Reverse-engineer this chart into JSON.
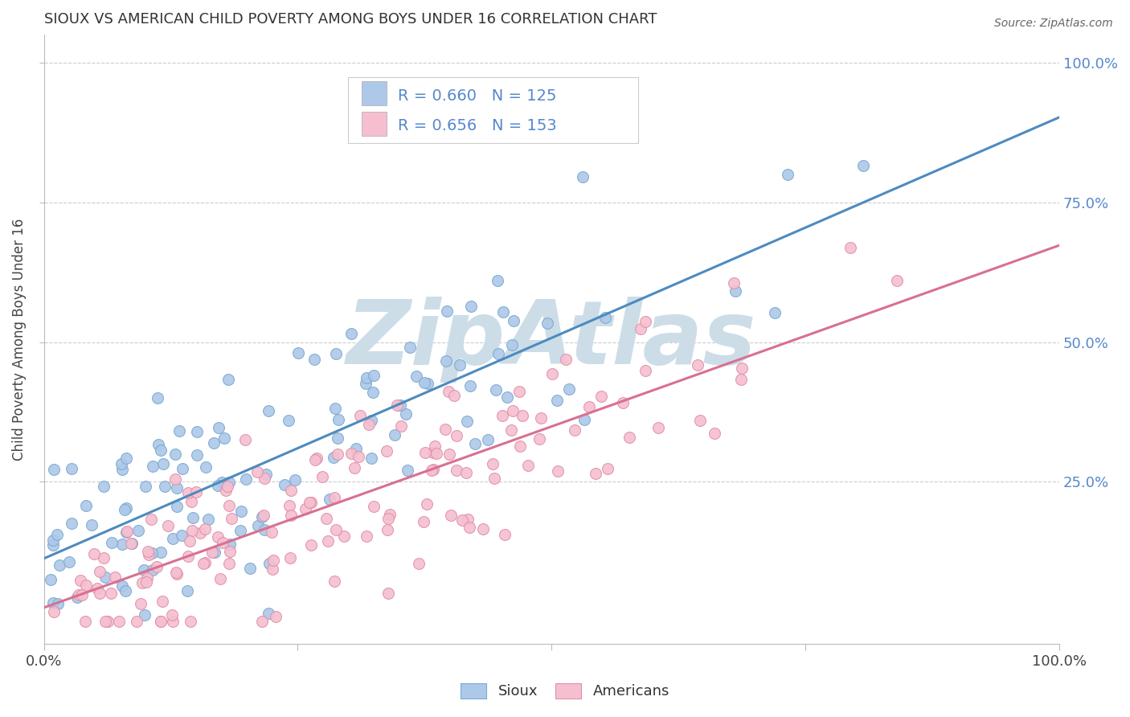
{
  "title": "SIOUX VS AMERICAN CHILD POVERTY AMONG BOYS UNDER 16 CORRELATION CHART",
  "source": "Source: ZipAtlas.com",
  "ylabel": "Child Poverty Among Boys Under 16",
  "sioux_R": 0.66,
  "sioux_N": 125,
  "american_R": 0.656,
  "american_N": 153,
  "sioux_color": "#adc8e8",
  "sioux_edge_color": "#7aaad0",
  "sioux_line_color": "#4d8bbf",
  "american_color": "#f5bfcf",
  "american_edge_color": "#e090aa",
  "american_line_color": "#d97090",
  "watermark_text": "ZipAtlas",
  "watermark_color": "#ccdde8",
  "right_tick_color": "#5588cc",
  "background_color": "#ffffff",
  "sioux_slope_true": 0.8,
  "sioux_intercept_true": 0.12,
  "american_slope_true": 0.6,
  "american_intercept_true": 0.04
}
